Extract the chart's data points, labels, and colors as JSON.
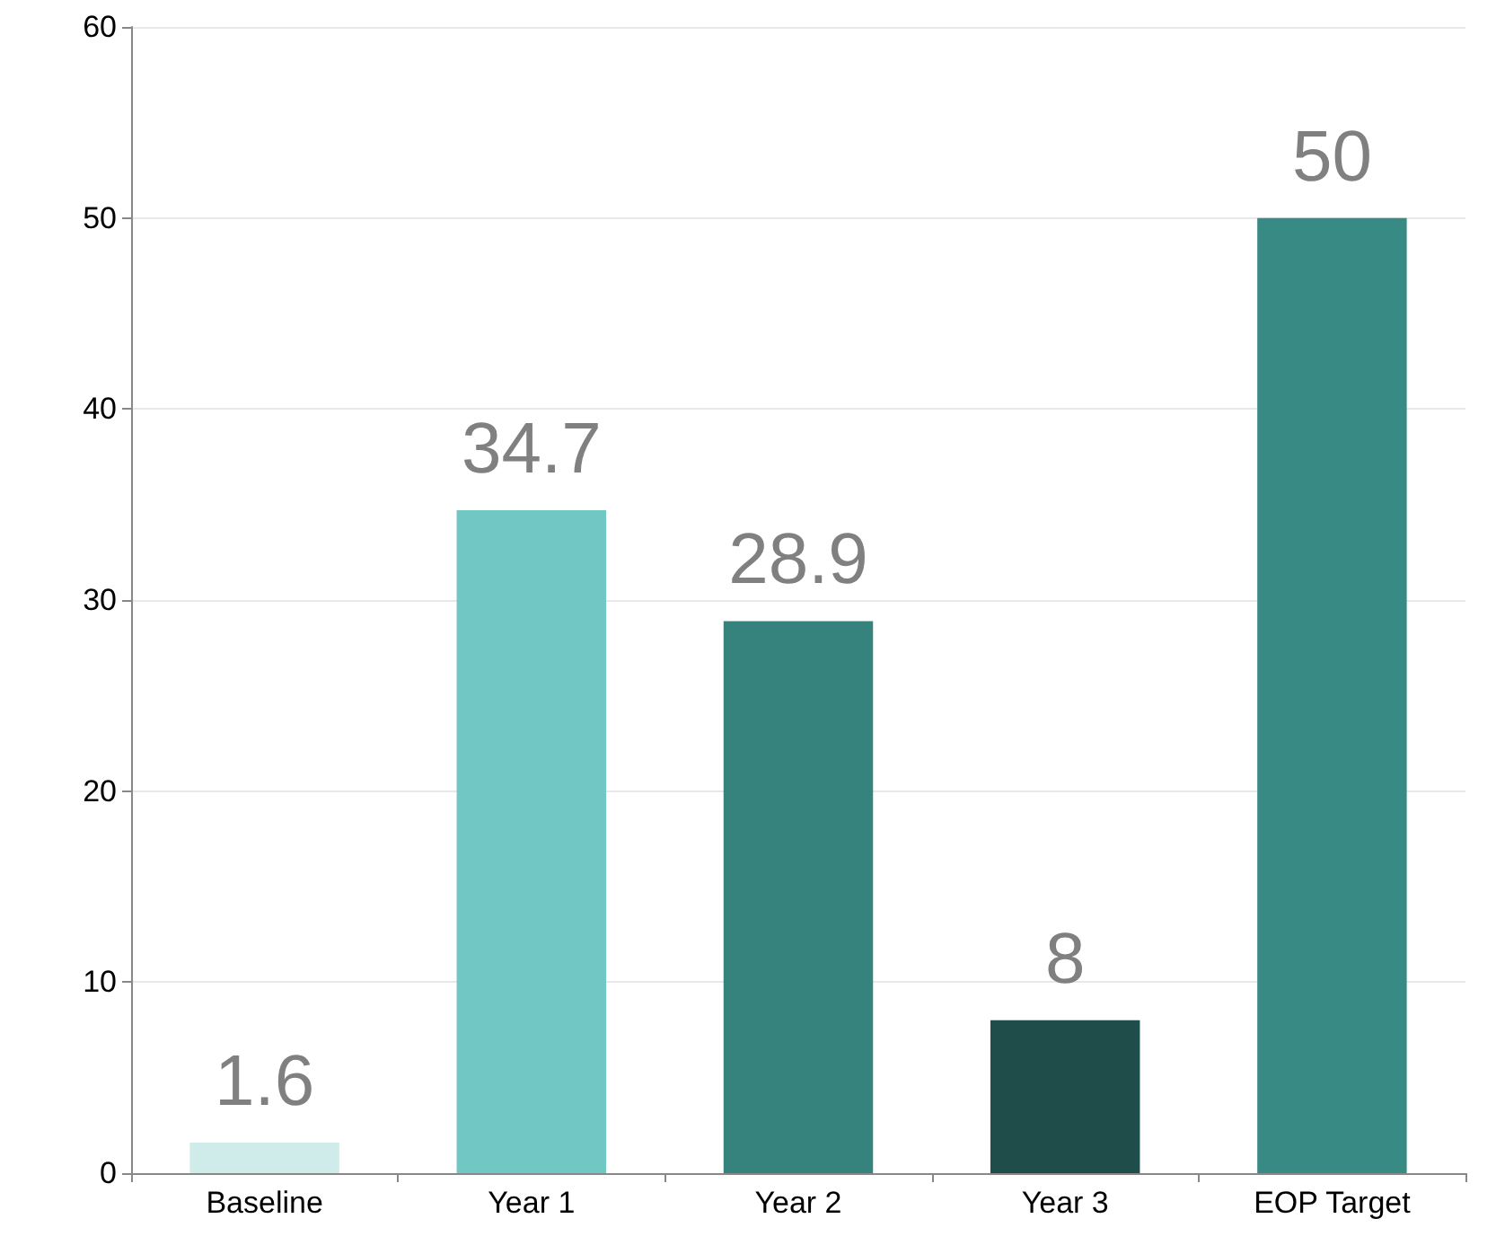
{
  "chart_data": {
    "type": "bar",
    "categories": [
      "Baseline",
      "Year 1",
      "Year 2",
      "Year 3",
      "EOP Target"
    ],
    "values": [
      1.6,
      34.7,
      28.9,
      8,
      50
    ],
    "colors": [
      "#d0ecea",
      "#70c7c3",
      "#35837c",
      "#1f4d4a",
      "#388a84"
    ],
    "ylim": [
      0,
      60
    ],
    "yticks": [
      0,
      10,
      20,
      30,
      40,
      50,
      60
    ],
    "grid": "y",
    "data_labels": true
  }
}
